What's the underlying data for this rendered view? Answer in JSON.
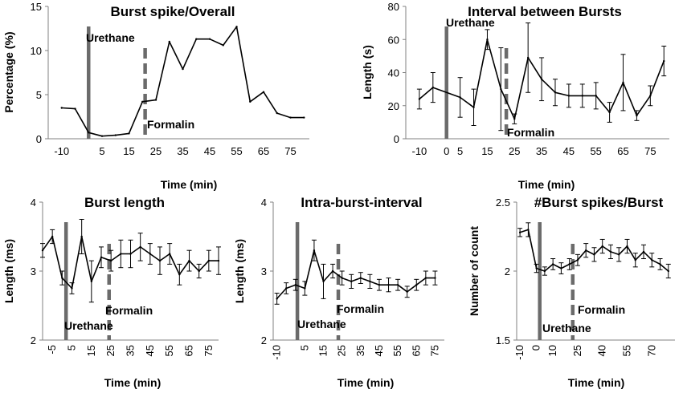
{
  "chart_data": [
    {
      "type": "line",
      "title": "Burst spike/Overall",
      "xlabel": "Time (min)",
      "ylabel": "Percentage (%)",
      "xlim": [
        -15,
        82
      ],
      "ylim": [
        0,
        15
      ],
      "x_ticks": [
        -10,
        5,
        15,
        25,
        35,
        45,
        55,
        65,
        75
      ],
      "x_tick_labels": [
        "-10",
        "5",
        "15",
        "25",
        "35",
        "45",
        "55",
        "65",
        "75"
      ],
      "y_ticks": [
        0,
        5,
        10,
        15
      ],
      "y_tick_labels": [
        "0",
        "5",
        "10",
        "15"
      ],
      "x": [
        -10,
        -5,
        0,
        5,
        10,
        15,
        20,
        25,
        30,
        35,
        40,
        45,
        50,
        55,
        60,
        65,
        70,
        75,
        80
      ],
      "values": [
        3.5,
        3.4,
        0.7,
        0.3,
        0.4,
        0.6,
        4.2,
        4.4,
        11.0,
        7.9,
        11.3,
        11.3,
        10.6,
        12.7,
        4.2,
        5.3,
        2.9,
        2.4,
        2.4
      ],
      "errors": null,
      "urethane_x": 0,
      "urethane_label": "Urethane",
      "formalin_x": 21,
      "formalin_label": "Formalin"
    },
    {
      "type": "line",
      "title": "Interval between Bursts",
      "xlabel": "Time (min)",
      "ylabel": "Length (s)",
      "xlim": [
        -15,
        82
      ],
      "ylim": [
        0,
        80
      ],
      "x_ticks": [
        -10,
        0,
        5,
        15,
        25,
        35,
        45,
        55,
        65,
        75
      ],
      "x_tick_labels": [
        "-10",
        "0",
        "5",
        "15",
        "25",
        "35",
        "45",
        "55",
        "65",
        "75"
      ],
      "y_ticks": [
        0,
        20,
        40,
        60,
        80
      ],
      "y_tick_labels": [
        "0",
        "20",
        "40",
        "60",
        "80"
      ],
      "x": [
        -10,
        -5,
        5,
        10,
        15,
        20,
        25,
        30,
        35,
        40,
        45,
        50,
        55,
        60,
        65,
        70,
        75,
        80
      ],
      "values": [
        24,
        31,
        25,
        19,
        60,
        30,
        12,
        49,
        36,
        28,
        26,
        26,
        26,
        16,
        34,
        14,
        26,
        47
      ],
      "errors": [
        6,
        9,
        12,
        11,
        6,
        25,
        3,
        21,
        13,
        8,
        7,
        7,
        8,
        6,
        17,
        3,
        6,
        9
      ],
      "urethane_x": 0,
      "urethane_label": "Urethane",
      "formalin_x": 22,
      "formalin_label": "Formalin"
    },
    {
      "type": "line",
      "title": "Burst length",
      "xlabel": "Time (min)",
      "ylabel": "Length (ms)",
      "xlim": [
        -10,
        80
      ],
      "ylim": [
        2,
        4
      ],
      "x_ticks": [
        -5,
        5,
        15,
        25,
        35,
        45,
        55,
        65,
        75
      ],
      "x_tick_labels": [
        "-5",
        "5",
        "15",
        "25",
        "35",
        "45",
        "55",
        "65",
        "75"
      ],
      "y_ticks": [
        2,
        3,
        4
      ],
      "y_tick_labels": [
        "2",
        "3",
        "4"
      ],
      "x": [
        -10,
        -5,
        0,
        5,
        10,
        15,
        20,
        25,
        30,
        35,
        40,
        45,
        50,
        55,
        60,
        65,
        70,
        75,
        80
      ],
      "values": [
        3.3,
        3.5,
        2.9,
        2.75,
        3.5,
        2.85,
        3.2,
        3.15,
        3.25,
        3.25,
        3.35,
        3.25,
        3.15,
        3.25,
        2.95,
        3.15,
        3.0,
        3.15,
        3.15
      ],
      "errors": [
        0.1,
        0.1,
        0.1,
        0.08,
        0.25,
        0.3,
        0.15,
        0.15,
        0.2,
        0.2,
        0.2,
        0.15,
        0.2,
        0.15,
        0.15,
        0.15,
        0.1,
        0.15,
        0.2
      ],
      "urethane_x": 2,
      "urethane_label": "Urethane",
      "formalin_x": 24,
      "formalin_label": "Formalin"
    },
    {
      "type": "line",
      "title": "Intra-burst-interval",
      "xlabel": "Time (min)",
      "ylabel": "Length (ms)",
      "xlim": [
        -12,
        80
      ],
      "ylim": [
        2,
        4
      ],
      "x_ticks": [
        -10,
        5,
        15,
        25,
        35,
        45,
        55,
        65,
        75
      ],
      "x_tick_labels": [
        "-10",
        "5",
        "15",
        "25",
        "35",
        "45",
        "55",
        "65",
        "75"
      ],
      "y_ticks": [
        2,
        3,
        4
      ],
      "y_tick_labels": [
        "2",
        "3",
        "4"
      ],
      "x": [
        -10,
        -5,
        0,
        5,
        10,
        15,
        20,
        25,
        30,
        35,
        40,
        45,
        50,
        55,
        60,
        65,
        70,
        75
      ],
      "values": [
        2.6,
        2.75,
        2.8,
        2.75,
        3.3,
        2.85,
        3.0,
        2.9,
        2.85,
        2.9,
        2.85,
        2.8,
        2.8,
        2.8,
        2.7,
        2.8,
        2.9,
        2.9
      ],
      "errors": [
        0.08,
        0.08,
        0.08,
        0.1,
        0.15,
        0.25,
        0.1,
        0.1,
        0.1,
        0.08,
        0.1,
        0.08,
        0.1,
        0.08,
        0.08,
        0.08,
        0.1,
        0.1
      ],
      "urethane_x": 1,
      "urethane_label": "Urethane",
      "formalin_x": 23,
      "formalin_label": "Formalin"
    },
    {
      "type": "line",
      "title": "#Burst spikes/Burst",
      "xlabel": "Time (min)",
      "ylabel": "Number of count",
      "xlim": [
        -12,
        84
      ],
      "ylim": [
        1.5,
        2.5
      ],
      "x_ticks": [
        -10,
        0,
        10,
        25,
        40,
        55,
        70
      ],
      "x_tick_labels": [
        "-10",
        "0",
        "10",
        "25",
        "40",
        "55",
        "70"
      ],
      "y_ticks": [
        1.5,
        2,
        2.5
      ],
      "y_tick_labels": [
        "1.5",
        "2",
        "2.5"
      ],
      "x": [
        -10,
        -5,
        0,
        5,
        10,
        15,
        20,
        25,
        30,
        35,
        40,
        45,
        50,
        55,
        60,
        65,
        70,
        75,
        80
      ],
      "values": [
        2.28,
        2.3,
        2.02,
        2.0,
        2.05,
        2.02,
        2.05,
        2.08,
        2.15,
        2.12,
        2.18,
        2.14,
        2.12,
        2.18,
        2.08,
        2.14,
        2.08,
        2.05,
        2.0
      ],
      "errors": [
        0.03,
        0.05,
        0.03,
        0.03,
        0.04,
        0.04,
        0.04,
        0.04,
        0.05,
        0.05,
        0.05,
        0.05,
        0.05,
        0.05,
        0.05,
        0.05,
        0.05,
        0.04,
        0.05
      ],
      "urethane_x": 2,
      "urethane_label": "Urethane",
      "formalin_x": 22,
      "formalin_label": "Formalin"
    }
  ]
}
